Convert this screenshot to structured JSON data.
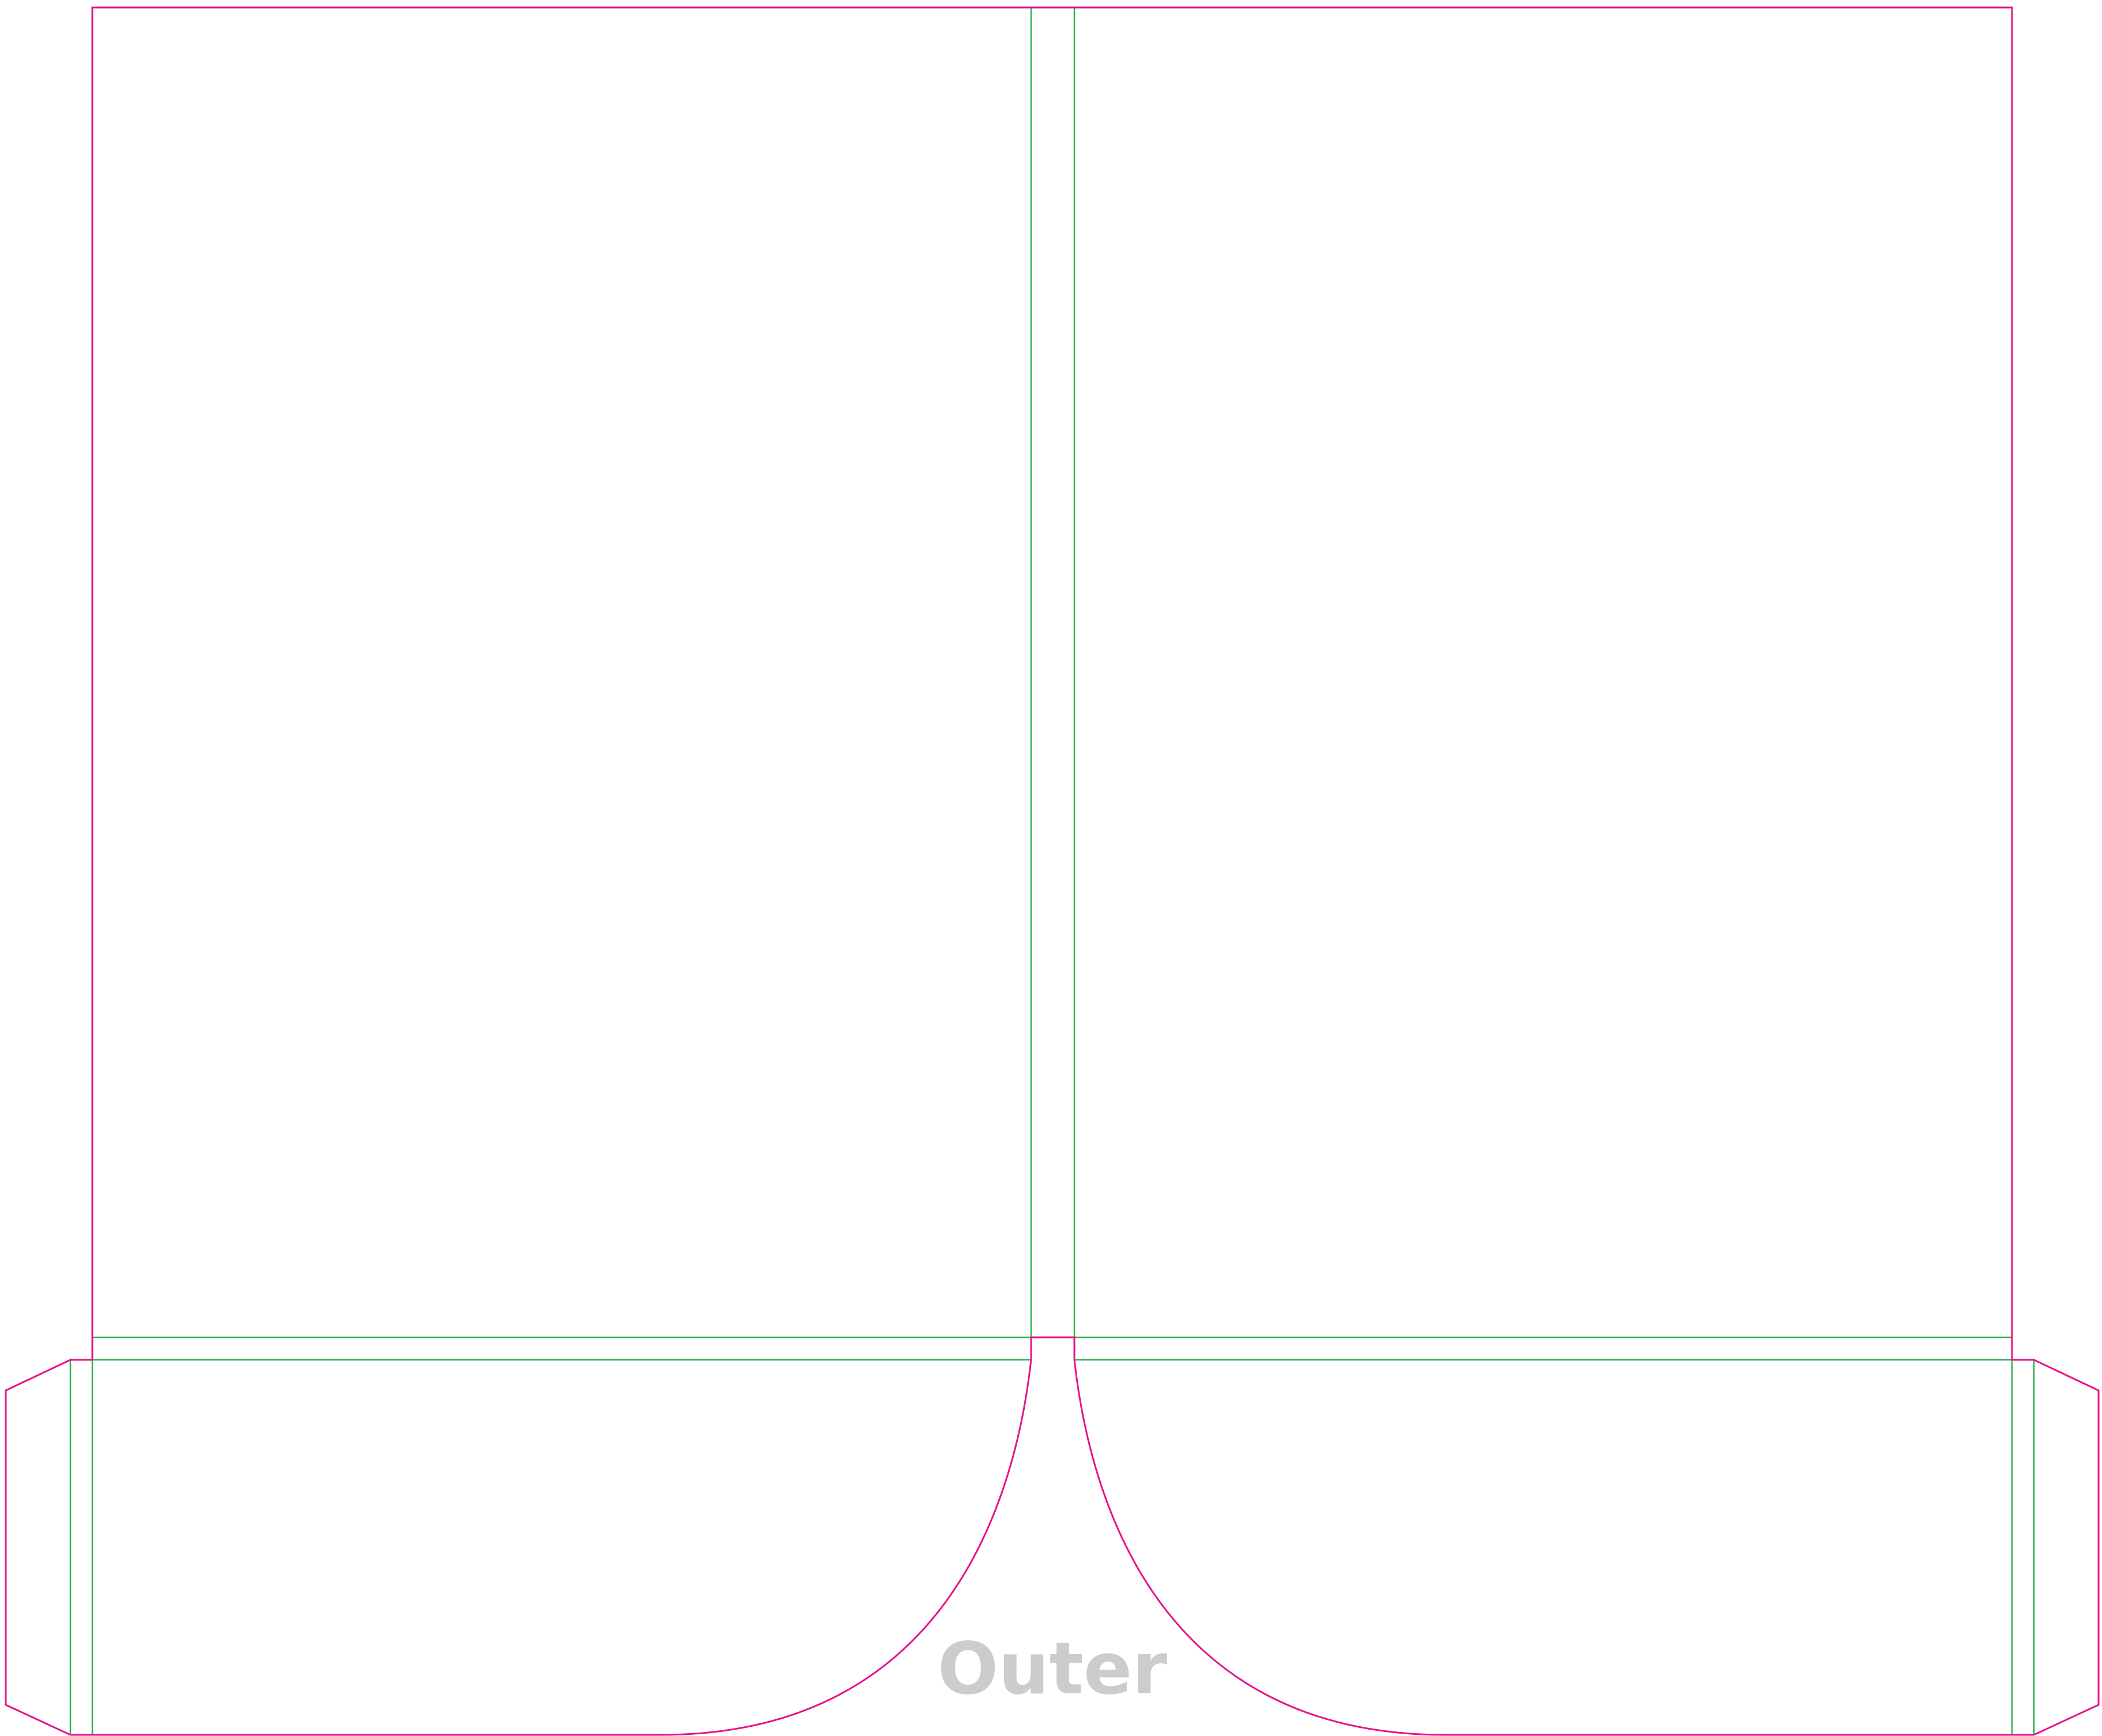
{
  "diagram": {
    "side_label": "Outer",
    "colors": {
      "background": "#ffffff",
      "cut_line": "#e6128a",
      "fold_line": "#2bb34a",
      "label": "#cccccc"
    }
  }
}
